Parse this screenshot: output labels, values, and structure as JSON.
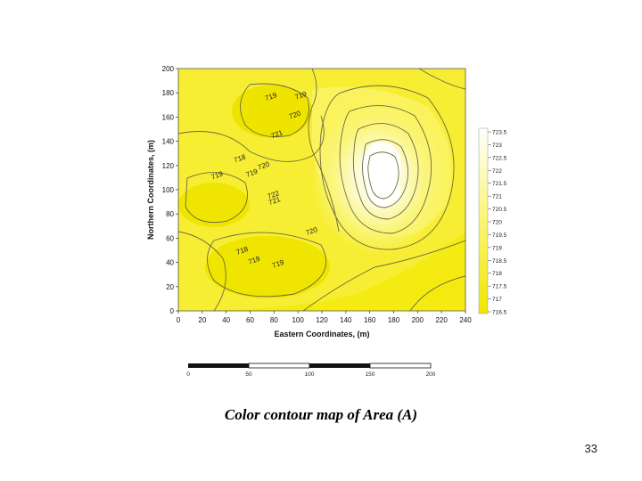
{
  "chart_data": {
    "type": "contour",
    "xlabel": "Eastern Coordinates, (m)",
    "ylabel": "Northern Coordinates, (m)",
    "xlim": [
      0,
      240
    ],
    "ylim": [
      0,
      200
    ],
    "xticks": [
      0,
      20,
      40,
      60,
      80,
      100,
      120,
      140,
      160,
      180,
      200,
      220,
      240
    ],
    "yticks": [
      0,
      20,
      40,
      60,
      80,
      100,
      120,
      140,
      160,
      180,
      200
    ],
    "grid": false,
    "colorscale": {
      "low": "#f2ea00",
      "mid": "#fbf57a",
      "high": "#ffffff"
    },
    "legend": {
      "position": "right",
      "levels": [
        "723.5",
        "723",
        "722.5",
        "722",
        "721.5",
        "721",
        "720.5",
        "720",
        "719.5",
        "719",
        "718.5",
        "718",
        "717.5",
        "717",
        "716.5"
      ]
    },
    "contour_labels": [
      {
        "text": "719",
        "x": 78,
        "y": 175
      },
      {
        "text": "719",
        "x": 103,
        "y": 176
      },
      {
        "text": "720",
        "x": 98,
        "y": 160
      },
      {
        "text": "721",
        "x": 83,
        "y": 144
      },
      {
        "text": "718",
        "x": 52,
        "y": 124
      },
      {
        "text": "719",
        "x": 33,
        "y": 110
      },
      {
        "text": "719",
        "x": 62,
        "y": 112
      },
      {
        "text": "720",
        "x": 72,
        "y": 118
      },
      {
        "text": "722",
        "x": 80,
        "y": 94
      },
      {
        "text": "721",
        "x": 81,
        "y": 89
      },
      {
        "text": "720",
        "x": 112,
        "y": 64
      },
      {
        "text": "718",
        "x": 54,
        "y": 48
      },
      {
        "text": "719",
        "x": 64,
        "y": 40
      },
      {
        "text": "719",
        "x": 84,
        "y": 37
      }
    ],
    "peaks": [
      {
        "x": 157,
        "y": 120,
        "value": 723.5
      },
      {
        "x": 160,
        "y": 100,
        "value": 723.5
      }
    ],
    "scale_bar": {
      "labels": [
        "0",
        "50",
        "100",
        "150",
        "200"
      ]
    }
  },
  "caption": "Color contour map of Area (A)",
  "page_number": "33"
}
